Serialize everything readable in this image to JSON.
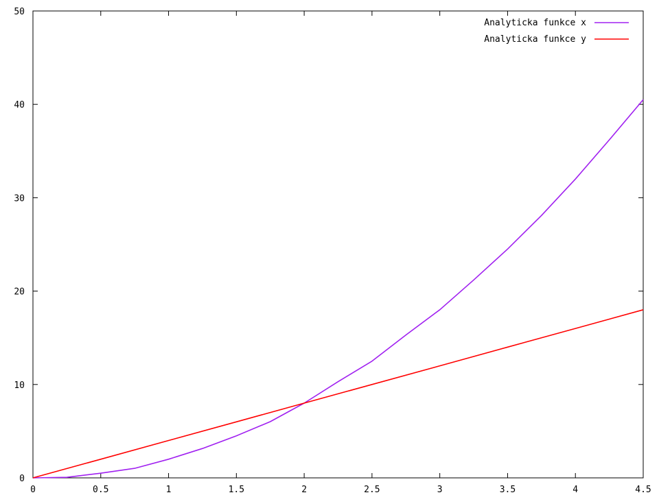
{
  "chart_data": {
    "type": "line",
    "title": "",
    "xlabel": "",
    "ylabel": "",
    "xlim": [
      0,
      4.5
    ],
    "ylim": [
      0,
      50
    ],
    "xticks": [
      {
        "value": 0,
        "label": "0"
      },
      {
        "value": 0.5,
        "label": "0.5"
      },
      {
        "value": 1,
        "label": "1"
      },
      {
        "value": 1.5,
        "label": "1.5"
      },
      {
        "value": 2,
        "label": "2"
      },
      {
        "value": 2.5,
        "label": "2.5"
      },
      {
        "value": 3,
        "label": "3"
      },
      {
        "value": 3.5,
        "label": "3.5"
      },
      {
        "value": 4,
        "label": "4"
      },
      {
        "value": 4.5,
        "label": "4.5"
      }
    ],
    "yticks": [
      {
        "value": 0,
        "label": "0"
      },
      {
        "value": 10,
        "label": "10"
      },
      {
        "value": 20,
        "label": "20"
      },
      {
        "value": 30,
        "label": "30"
      },
      {
        "value": 40,
        "label": "40"
      },
      {
        "value": 50,
        "label": "50"
      }
    ],
    "grid": false,
    "legend_position": "top-right",
    "series": [
      {
        "name": "Analyticka funkce x",
        "color": "#a020f0",
        "x": [
          0,
          0.25,
          0.5,
          0.75,
          1,
          1.25,
          1.5,
          1.75,
          2,
          2.25,
          2.5,
          2.75,
          3,
          3.25,
          3.5,
          3.75,
          4,
          4.25,
          4.5
        ],
        "y": [
          0,
          0.06,
          0.5,
          1.02,
          2,
          3.14,
          4.5,
          6.02,
          8,
          10.3,
          12.5,
          15.3,
          18,
          21.2,
          24.5,
          28.1,
          32,
          36.2,
          40.5
        ]
      },
      {
        "name": "Analyticka funkce y",
        "color": "#ff0000",
        "x": [
          0,
          0.5,
          1,
          1.5,
          2,
          2.5,
          3,
          3.5,
          4,
          4.5
        ],
        "y": [
          0,
          2,
          4,
          6,
          8,
          10,
          12,
          14,
          16,
          18
        ]
      }
    ]
  }
}
